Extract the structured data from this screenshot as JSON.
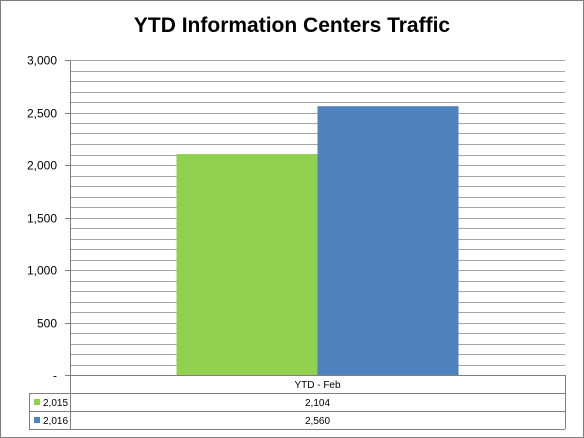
{
  "chart_data": {
    "type": "bar",
    "title": "YTD Information Centers Traffic",
    "categories": [
      "YTD - Feb"
    ],
    "series": [
      {
        "name": "2,015",
        "values": [
          2104
        ],
        "value_labels": [
          "2,104"
        ],
        "color": "#92D050"
      },
      {
        "name": "2,016",
        "values": [
          2560
        ],
        "value_labels": [
          "2,560"
        ],
        "color": "#4F81BD"
      }
    ],
    "ylim": [
      0,
      3000
    ],
    "yticks": [
      0,
      500,
      1000,
      1500,
      2000,
      2500,
      3000
    ],
    "ytick_labels": [
      "-",
      "500",
      "1,000",
      "1,500",
      "2,000",
      "2,500",
      "3,000"
    ],
    "minor_grid_step": 100,
    "grid": true,
    "legend": "data-table-below",
    "data_table": true
  }
}
